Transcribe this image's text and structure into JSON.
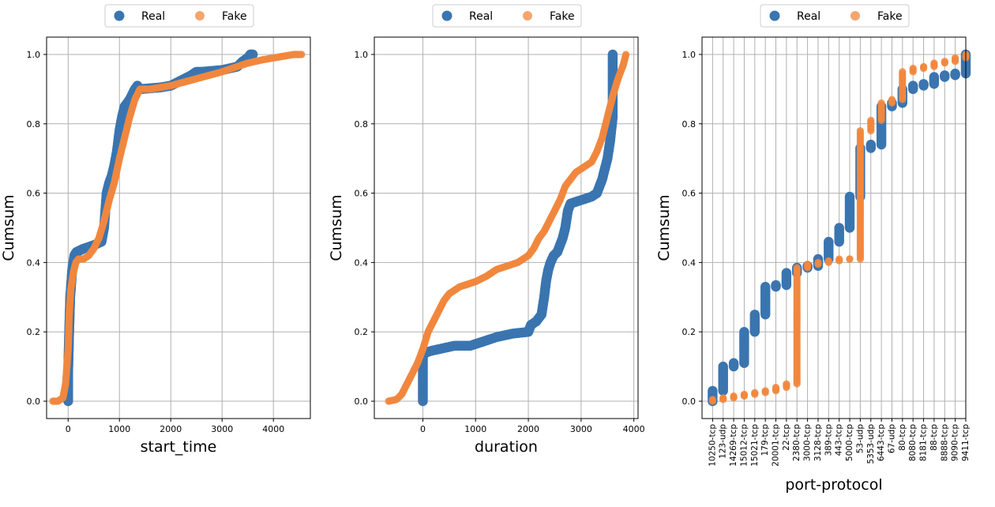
{
  "colors": {
    "real": "#3a75b0",
    "fake": "#f0883e",
    "grid": "#b0b0b0",
    "axis": "#000000"
  },
  "legend_labels": {
    "real": "Real",
    "fake": "Fake"
  },
  "chart_data": [
    {
      "type": "scatter",
      "xlabel": "start_time",
      "ylabel": "Cumsum",
      "xlim": [
        -420,
        4720
      ],
      "ylim": [
        -0.05,
        1.05
      ],
      "xticks": [
        0,
        1000,
        2000,
        3000,
        4000
      ],
      "xtick_labels": [
        "0",
        "1000",
        "2000",
        "3000",
        "4000"
      ],
      "yticks": [
        0.0,
        0.2,
        0.4,
        0.6,
        0.8,
        1.0
      ],
      "ytick_labels": [
        "0.0",
        "0.2",
        "0.4",
        "0.6",
        "0.8",
        "1.0"
      ],
      "legend": "top-center",
      "series": [
        {
          "name": "Real",
          "x": [
            0,
            0,
            20,
            40,
            80,
            120,
            160,
            300,
            500,
            650,
            700,
            750,
            800,
            850,
            900,
            950,
            1000,
            1050,
            1100,
            1200,
            1300,
            1350,
            1400,
            1800,
            2000,
            2200,
            2400,
            2500,
            2600,
            3000,
            3300,
            3400,
            3500,
            3550,
            3600
          ],
          "y": [
            0.0,
            0.08,
            0.2,
            0.3,
            0.38,
            0.42,
            0.43,
            0.44,
            0.45,
            0.46,
            0.5,
            0.6,
            0.63,
            0.65,
            0.68,
            0.72,
            0.78,
            0.82,
            0.85,
            0.87,
            0.9,
            0.91,
            0.9,
            0.905,
            0.91,
            0.925,
            0.94,
            0.95,
            0.95,
            0.955,
            0.965,
            0.98,
            0.99,
            1.0,
            1.0
          ]
        },
        {
          "name": "Fake",
          "x": [
            -300,
            -200,
            -100,
            -50,
            0,
            20,
            50,
            100,
            150,
            200,
            300,
            400,
            500,
            600,
            700,
            800,
            900,
            1000,
            1100,
            1200,
            1300,
            1400,
            1600,
            1800,
            2000,
            2500,
            3000,
            3500,
            3800,
            4000,
            4200,
            4400,
            4550
          ],
          "y": [
            0.0,
            0.0,
            0.01,
            0.05,
            0.15,
            0.25,
            0.32,
            0.37,
            0.4,
            0.41,
            0.41,
            0.42,
            0.44,
            0.47,
            0.52,
            0.58,
            0.63,
            0.7,
            0.76,
            0.82,
            0.87,
            0.9,
            0.9,
            0.905,
            0.91,
            0.93,
            0.95,
            0.975,
            0.985,
            0.99,
            0.995,
            1.0,
            1.0
          ]
        }
      ]
    },
    {
      "type": "scatter",
      "xlabel": "duration",
      "ylabel": "Cumsum",
      "xlim": [
        -920,
        4080
      ],
      "ylim": [
        -0.05,
        1.05
      ],
      "xticks": [
        0,
        1000,
        2000,
        3000,
        4000
      ],
      "xtick_labels": [
        "0",
        "1000",
        "2000",
        "3000",
        "4000"
      ],
      "yticks": [
        0.0,
        0.2,
        0.4,
        0.6,
        0.8,
        1.0
      ],
      "ytick_labels": [
        "0.0",
        "0.2",
        "0.4",
        "0.6",
        "0.8",
        "1.0"
      ],
      "legend": "top-center",
      "series": [
        {
          "name": "Real",
          "x": [
            0,
            0,
            0,
            0,
            50,
            150,
            300,
            450,
            600,
            900,
            1000,
            1200,
            1400,
            1550,
            1700,
            2000,
            2050,
            2150,
            2250,
            2300,
            2340,
            2380,
            2420,
            2480,
            2550,
            2600,
            2650,
            2700,
            2750,
            2800,
            2900,
            3000,
            3100,
            3200,
            3300,
            3400,
            3500,
            3550,
            3600,
            3600,
            3600,
            3600
          ],
          "y": [
            0.0,
            0.05,
            0.1,
            0.13,
            0.14,
            0.145,
            0.15,
            0.155,
            0.16,
            0.16,
            0.165,
            0.175,
            0.185,
            0.19,
            0.195,
            0.2,
            0.22,
            0.23,
            0.25,
            0.3,
            0.35,
            0.38,
            0.4,
            0.42,
            0.43,
            0.45,
            0.47,
            0.5,
            0.55,
            0.57,
            0.575,
            0.58,
            0.585,
            0.59,
            0.6,
            0.64,
            0.7,
            0.75,
            0.82,
            0.88,
            0.95,
            1.0
          ]
        },
        {
          "name": "Fake",
          "x": [
            -650,
            -500,
            -400,
            -300,
            -200,
            -100,
            0,
            100,
            200,
            300,
            400,
            500,
            600,
            700,
            800,
            1000,
            1200,
            1400,
            1600,
            1800,
            2000,
            2100,
            2200,
            2300,
            2400,
            2500,
            2600,
            2700,
            2800,
            2900,
            3000,
            3100,
            3200,
            3300,
            3400,
            3500,
            3600,
            3700,
            3800,
            3850
          ],
          "y": [
            0.0,
            0.005,
            0.02,
            0.05,
            0.08,
            0.11,
            0.15,
            0.2,
            0.23,
            0.26,
            0.29,
            0.31,
            0.32,
            0.33,
            0.335,
            0.345,
            0.36,
            0.38,
            0.39,
            0.4,
            0.42,
            0.44,
            0.47,
            0.49,
            0.52,
            0.55,
            0.58,
            0.62,
            0.64,
            0.66,
            0.67,
            0.68,
            0.69,
            0.72,
            0.76,
            0.82,
            0.88,
            0.93,
            0.97,
            1.0
          ]
        }
      ]
    },
    {
      "type": "scatter",
      "xlabel": "port-protocol",
      "ylabel": "Cumsum",
      "xlim": [
        -1.0,
        24.0
      ],
      "ylim": [
        -0.05,
        1.05
      ],
      "categories": [
        "10250-tcp",
        "123-udp",
        "14269-tcp",
        "15012-tcp",
        "15021-tcp",
        "179-tcp",
        "20001-tcp",
        "22-tcp",
        "2380-tcp",
        "3000-tcp",
        "3128-tcp",
        "389-tcp",
        "443-tcp",
        "5000-tcp",
        "53-udp",
        "5353-udp",
        "6443-tcp",
        "67-udp",
        "80-tcp",
        "8080-tcp",
        "8181-tcp",
        "88-tcp",
        "8888-tcp",
        "9090-tcp",
        "9411-tcp"
      ],
      "yticks": [
        0.0,
        0.2,
        0.4,
        0.6,
        0.8,
        1.0
      ],
      "ytick_labels": [
        "0.0",
        "0.2",
        "0.4",
        "0.6",
        "0.8",
        "1.0"
      ],
      "legend": "top-center",
      "series": [
        {
          "name": "Real",
          "ranges": [
            [
              0.0,
              0.03
            ],
            [
              0.03,
              0.1
            ],
            [
              0.1,
              0.11
            ],
            [
              0.11,
              0.2
            ],
            [
              0.2,
              0.25
            ],
            [
              0.25,
              0.33
            ],
            [
              0.33,
              0.335
            ],
            [
              0.335,
              0.37
            ],
            [
              0.37,
              0.385
            ],
            [
              0.385,
              0.39
            ],
            [
              0.39,
              0.41
            ],
            [
              0.41,
              0.46
            ],
            [
              0.46,
              0.5
            ],
            [
              0.5,
              0.59
            ],
            [
              0.59,
              0.73
            ],
            [
              0.73,
              0.74
            ],
            [
              0.74,
              0.85
            ],
            [
              0.85,
              0.86
            ],
            [
              0.86,
              0.9
            ],
            [
              0.9,
              0.91
            ],
            [
              0.91,
              0.915
            ],
            [
              0.915,
              0.935
            ],
            [
              0.935,
              0.94
            ],
            [
              0.94,
              0.945
            ],
            [
              0.945,
              1.0
            ]
          ]
        },
        {
          "name": "Fake",
          "ranges": [
            [
              0.0,
              0.005
            ],
            [
              0.005,
              0.01
            ],
            [
              0.01,
              0.015
            ],
            [
              0.015,
              0.02
            ],
            [
              0.02,
              0.025
            ],
            [
              0.025,
              0.03
            ],
            [
              0.03,
              0.04
            ],
            [
              0.04,
              0.05
            ],
            [
              0.05,
              0.385
            ],
            [
              0.385,
              0.395
            ],
            [
              0.395,
              0.4
            ],
            [
              0.4,
              0.405
            ],
            [
              0.405,
              0.41
            ],
            [
              0.41,
              0.41
            ],
            [
              0.41,
              0.78
            ],
            [
              0.78,
              0.81
            ],
            [
              0.81,
              0.86
            ],
            [
              0.86,
              0.87
            ],
            [
              0.87,
              0.95
            ],
            [
              0.95,
              0.96
            ],
            [
              0.96,
              0.965
            ],
            [
              0.965,
              0.975
            ],
            [
              0.975,
              0.98
            ],
            [
              0.98,
              0.99
            ],
            [
              0.99,
              1.0
            ]
          ]
        }
      ]
    }
  ]
}
